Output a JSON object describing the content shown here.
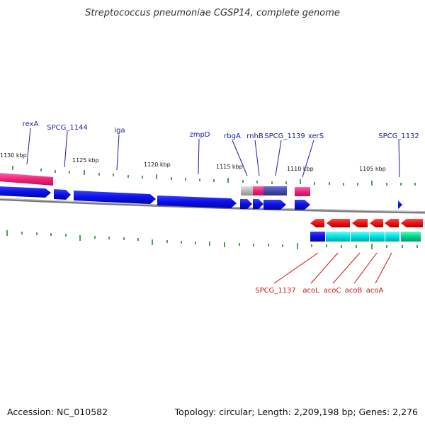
{
  "title": "Streptococcus pneumoniae CGSP14, complete genome",
  "accession": "Accession: NC_010582",
  "topology": "Topology: circular; Length: 2,209,198 bp; Genes: 2,276",
  "colors": {
    "forward_gene": "#0a10e6",
    "reverse_gene": "#ee1111",
    "pink": "#ee2277",
    "gray": "#b8b8b8",
    "slate": "#4a4ab0",
    "cyan": "#00dede",
    "green": "#00d28a",
    "tick": "#1a7a1a",
    "backbone": "#8a8a8a",
    "label_top": "#1a1aa8",
    "label_bottom": "#cc1111"
  },
  "tick_labels": [
    "1130 kbp",
    "1125 kbp",
    "1120 kbp",
    "1115 kbp",
    "1110 kbp",
    "1105 kbp"
  ],
  "top_labels": [
    "rexA",
    "SPCG_1144",
    "iga",
    "zmpD",
    "rbgA",
    "rnhB",
    "SPCG_1139",
    "xerS",
    "SPCG_1132"
  ],
  "bottom_labels": [
    "SPCG_1137",
    "acoL",
    "acoC",
    "acoB",
    "acoA"
  ]
}
